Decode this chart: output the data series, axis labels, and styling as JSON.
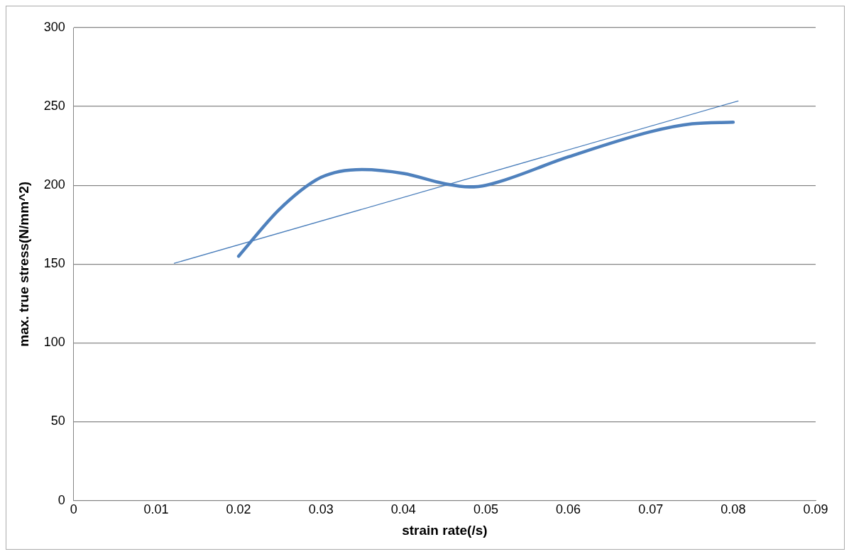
{
  "chart_data": {
    "type": "line",
    "xlabel": "strain rate(/s)",
    "ylabel": "max. true stress(N/mm^2)",
    "xlim": [
      0,
      0.09
    ],
    "xticks": [
      0,
      0.01,
      0.02,
      0.03,
      0.04,
      0.05,
      0.06,
      0.07,
      0.08,
      0.09
    ],
    "ylim": [
      0,
      300
    ],
    "yticks": [
      0,
      50,
      100,
      150,
      200,
      250,
      300
    ],
    "grid": "y",
    "legend": false,
    "marker": "none",
    "line_style": "solid",
    "series": [
      {
        "color": "#4f81bd",
        "x": [
          0.02,
          0.025,
          0.03,
          0.035,
          0.04,
          0.045,
          0.048,
          0.05,
          0.06,
          0.07,
          0.075,
          0.08
        ],
        "values": [
          155,
          185,
          205,
          210,
          207.5,
          201,
          199,
          200,
          218,
          234,
          239,
          240
        ]
      },
      {
        "color": "#4a7ebb",
        "x": [
          0.0122,
          0.0806
        ],
        "values": [
          150.5,
          253.5
        ]
      }
    ]
  }
}
